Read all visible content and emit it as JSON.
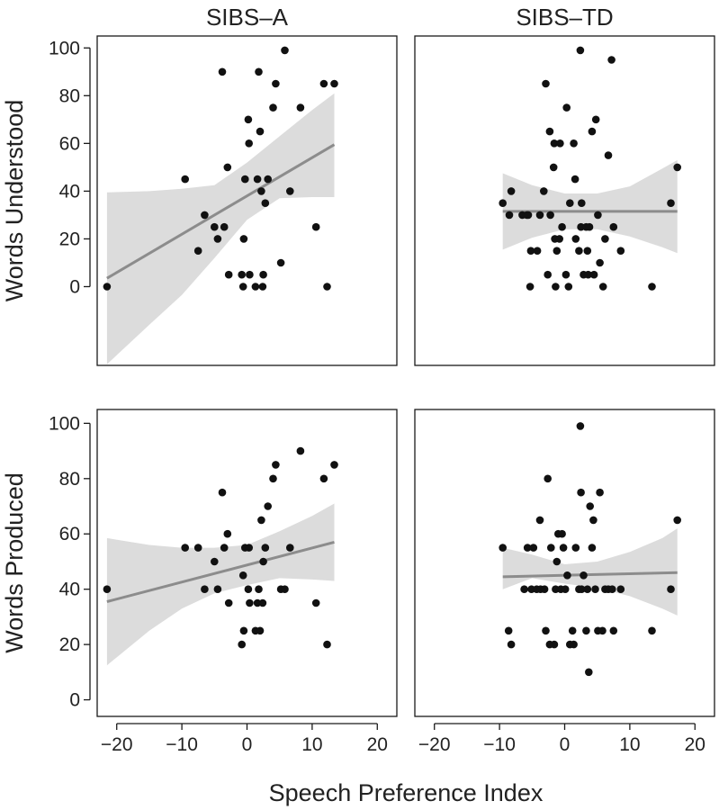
{
  "chart_data": {
    "type": "scatter",
    "figure_layout": "2x2 facet grid (rows: outcome measure, columns: group)",
    "column_titles": [
      "SIBS–A",
      "SIBS–TD"
    ],
    "row_titles": [
      "Words Understood",
      "Words Produced"
    ],
    "xlabel": "Speech Preference Index",
    "x_ticks": [
      "−20",
      "−10",
      "0",
      "10",
      "20"
    ],
    "x_tick_values": [
      -20,
      -10,
      0,
      10,
      20
    ],
    "xlim": [
      -23,
      23
    ],
    "colors": {
      "point": "#111111",
      "fit_line": "#8c8c8c",
      "ribbon": "#dcdcdc",
      "frame": "#1a1a1a"
    },
    "panels": [
      {
        "row": 0,
        "col": 0,
        "group": "SIBS–A",
        "measure": "Words Understood",
        "ylim": [
          -33,
          105
        ],
        "y_ticks": [
          "0",
          "20",
          "40",
          "60",
          "80",
          "100"
        ],
        "y_tick_values": [
          0,
          20,
          40,
          60,
          80,
          100
        ],
        "points": [
          [
            -21.5,
            0
          ],
          [
            -9.5,
            45
          ],
          [
            -7.5,
            15
          ],
          [
            -6.5,
            30
          ],
          [
            -5,
            25
          ],
          [
            -4.5,
            20
          ],
          [
            -3.5,
            25
          ],
          [
            -3.8,
            90
          ],
          [
            -3,
            50
          ],
          [
            -2.8,
            5
          ],
          [
            -0.8,
            5
          ],
          [
            -0.5,
            20
          ],
          [
            -0.3,
            45
          ],
          [
            -0.6,
            0
          ],
          [
            0.2,
            70
          ],
          [
            0.3,
            60
          ],
          [
            0.4,
            5
          ],
          [
            1.3,
            0
          ],
          [
            1.6,
            45
          ],
          [
            1.8,
            90
          ],
          [
            2,
            65
          ],
          [
            2.2,
            40
          ],
          [
            2.5,
            5
          ],
          [
            2.4,
            0
          ],
          [
            2.8,
            35
          ],
          [
            3.2,
            45
          ],
          [
            4,
            75
          ],
          [
            4.4,
            85
          ],
          [
            5.2,
            10
          ],
          [
            5.8,
            99
          ],
          [
            6.6,
            40
          ],
          [
            8.2,
            75
          ],
          [
            10.6,
            25
          ],
          [
            11.8,
            85
          ],
          [
            12.3,
            0
          ],
          [
            13.4,
            85
          ]
        ],
        "fit": {
          "x": [
            -21.5,
            13.4
          ],
          "y": [
            3.5,
            59.5
          ]
        },
        "ribbon": {
          "x": [
            -21.5,
            -15,
            -10,
            -5,
            0,
            5,
            10,
            13.4
          ],
          "lower": [
            -32.5,
            -16,
            -3.5,
            12,
            28,
            37,
            37.5,
            37.5
          ],
          "upper": [
            39.5,
            40,
            41,
            42.5,
            52,
            63,
            74,
            81
          ]
        }
      },
      {
        "row": 0,
        "col": 1,
        "group": "SIBS–TD",
        "measure": "Words Understood",
        "ylim": [
          -33,
          105
        ],
        "y_ticks": [],
        "y_tick_values": [],
        "points": [
          [
            -9.5,
            35
          ],
          [
            -8.5,
            30
          ],
          [
            -8.2,
            40
          ],
          [
            -6.5,
            30
          ],
          [
            -5.8,
            30
          ],
          [
            -5.6,
            30
          ],
          [
            -5.2,
            15
          ],
          [
            -5.3,
            0
          ],
          [
            -4.2,
            15
          ],
          [
            -3.8,
            30
          ],
          [
            -2.2,
            30
          ],
          [
            -3.2,
            40
          ],
          [
            -2.9,
            85
          ],
          [
            -2.6,
            5
          ],
          [
            -2.3,
            65
          ],
          [
            -1.6,
            60
          ],
          [
            -1.5,
            20
          ],
          [
            -1.7,
            50
          ],
          [
            -1.2,
            15
          ],
          [
            -1.4,
            0
          ],
          [
            -0.7,
            60
          ],
          [
            -0.8,
            20
          ],
          [
            -0.4,
            25
          ],
          [
            0.3,
            75
          ],
          [
            0.2,
            5
          ],
          [
            0.6,
            0
          ],
          [
            0.8,
            35
          ],
          [
            1.4,
            60
          ],
          [
            1.6,
            45
          ],
          [
            1.7,
            20
          ],
          [
            2.4,
            99
          ],
          [
            2.2,
            15
          ],
          [
            2.5,
            25
          ],
          [
            2.6,
            35
          ],
          [
            2.9,
            5
          ],
          [
            3.3,
            25
          ],
          [
            3.5,
            15
          ],
          [
            3.6,
            5
          ],
          [
            3.8,
            25
          ],
          [
            4.2,
            65
          ],
          [
            4.5,
            5
          ],
          [
            4.8,
            70
          ],
          [
            5.1,
            30
          ],
          [
            5.4,
            10
          ],
          [
            5.9,
            0
          ],
          [
            6.2,
            20
          ],
          [
            6.7,
            55
          ],
          [
            7.2,
            95
          ],
          [
            7.5,
            25
          ],
          [
            8.6,
            15
          ],
          [
            13.4,
            0
          ],
          [
            16.3,
            35
          ],
          [
            17.3,
            50
          ]
        ],
        "fit": {
          "x": [
            -9.5,
            17.3
          ],
          "y": [
            31.5,
            31.5
          ]
        },
        "ribbon": {
          "x": [
            -9.5,
            -5,
            0,
            5,
            10,
            15,
            17.3
          ],
          "lower": [
            15.5,
            20.5,
            24,
            24,
            21,
            16.5,
            14
          ],
          "upper": [
            47.5,
            42.5,
            39,
            39,
            42,
            49.5,
            53
          ]
        }
      },
      {
        "row": 1,
        "col": 0,
        "group": "SIBS–A",
        "measure": "Words Produced",
        "ylim": [
          -6,
          105
        ],
        "y_ticks": [
          "0",
          "20",
          "40",
          "60",
          "80",
          "100"
        ],
        "y_tick_values": [
          0,
          20,
          40,
          60,
          80,
          100
        ],
        "points": [
          [
            -21.5,
            40
          ],
          [
            -9.5,
            55
          ],
          [
            -7.5,
            55
          ],
          [
            -6.5,
            40
          ],
          [
            -5,
            50
          ],
          [
            -4.5,
            40
          ],
          [
            -3.5,
            55
          ],
          [
            -3.8,
            75
          ],
          [
            -3,
            60
          ],
          [
            -2.8,
            35
          ],
          [
            -0.8,
            20
          ],
          [
            -0.5,
            25
          ],
          [
            -0.3,
            55
          ],
          [
            -0.6,
            45
          ],
          [
            0.2,
            40
          ],
          [
            0.3,
            55
          ],
          [
            0.4,
            35
          ],
          [
            1.3,
            25
          ],
          [
            1.6,
            35
          ],
          [
            1.8,
            40
          ],
          [
            2,
            25
          ],
          [
            2.2,
            65
          ],
          [
            2.5,
            50
          ],
          [
            2.4,
            35
          ],
          [
            2.8,
            55
          ],
          [
            3.2,
            70
          ],
          [
            4,
            80
          ],
          [
            4.4,
            85
          ],
          [
            5.2,
            40
          ],
          [
            5.8,
            40
          ],
          [
            6.6,
            55
          ],
          [
            8.2,
            90
          ],
          [
            10.6,
            35
          ],
          [
            11.8,
            80
          ],
          [
            12.3,
            20
          ],
          [
            13.4,
            85
          ]
        ],
        "fit": {
          "x": [
            -21.5,
            13.4
          ],
          "y": [
            35.5,
            57
          ]
        },
        "ribbon": {
          "x": [
            -21.5,
            -15,
            -10,
            -5,
            0,
            5,
            10,
            13.4
          ],
          "lower": [
            12.5,
            25,
            33,
            38.5,
            41.5,
            44,
            43.5,
            43
          ],
          "upper": [
            58.5,
            56,
            55,
            55,
            56,
            61,
            66.5,
            71
          ]
        }
      },
      {
        "row": 1,
        "col": 1,
        "group": "SIBS–TD",
        "measure": "Words Produced",
        "ylim": [
          -6,
          105
        ],
        "y_ticks": [],
        "y_tick_values": [],
        "points": [
          [
            -9.5,
            55
          ],
          [
            -8.6,
            25
          ],
          [
            -8.2,
            20
          ],
          [
            -6.2,
            40
          ],
          [
            -5.7,
            55
          ],
          [
            -5.1,
            40
          ],
          [
            -4.8,
            55
          ],
          [
            -4.3,
            40
          ],
          [
            -3.8,
            65
          ],
          [
            -3.7,
            40
          ],
          [
            -3.1,
            40
          ],
          [
            -2.9,
            25
          ],
          [
            -2.6,
            80
          ],
          [
            -2.3,
            20
          ],
          [
            -2.1,
            55
          ],
          [
            -1.6,
            20
          ],
          [
            -1.4,
            40
          ],
          [
            -1.2,
            50
          ],
          [
            -1,
            60
          ],
          [
            -0.6,
            40
          ],
          [
            -0.4,
            60
          ],
          [
            -0.2,
            55
          ],
          [
            0.1,
            40
          ],
          [
            0.4,
            45
          ],
          [
            0.8,
            20
          ],
          [
            1.2,
            25
          ],
          [
            1.4,
            20
          ],
          [
            1.7,
            55
          ],
          [
            2.4,
            99
          ],
          [
            2.2,
            40
          ],
          [
            2.5,
            75
          ],
          [
            2.6,
            40
          ],
          [
            2.9,
            45
          ],
          [
            3.3,
            25
          ],
          [
            3.5,
            40
          ],
          [
            3.7,
            10
          ],
          [
            3.9,
            70
          ],
          [
            4.2,
            55
          ],
          [
            4.4,
            65
          ],
          [
            4.7,
            40
          ],
          [
            5.1,
            25
          ],
          [
            5.4,
            75
          ],
          [
            5.8,
            25
          ],
          [
            6.2,
            40
          ],
          [
            6.7,
            40
          ],
          [
            7.3,
            40
          ],
          [
            7.5,
            25
          ],
          [
            8.6,
            40
          ],
          [
            13.4,
            25
          ],
          [
            16.3,
            40
          ],
          [
            17.3,
            65
          ]
        ],
        "fit": {
          "x": [
            -9.5,
            17.3
          ],
          "y": [
            44.5,
            46
          ]
        },
        "ribbon": {
          "x": [
            -9.5,
            -5,
            0,
            5,
            10,
            15,
            17.3
          ],
          "lower": [
            40,
            44,
            42,
            40.5,
            37.5,
            33,
            30.5
          ],
          "upper": [
            55,
            52.5,
            49,
            50,
            53.5,
            58.5,
            62
          ]
        }
      }
    ]
  }
}
